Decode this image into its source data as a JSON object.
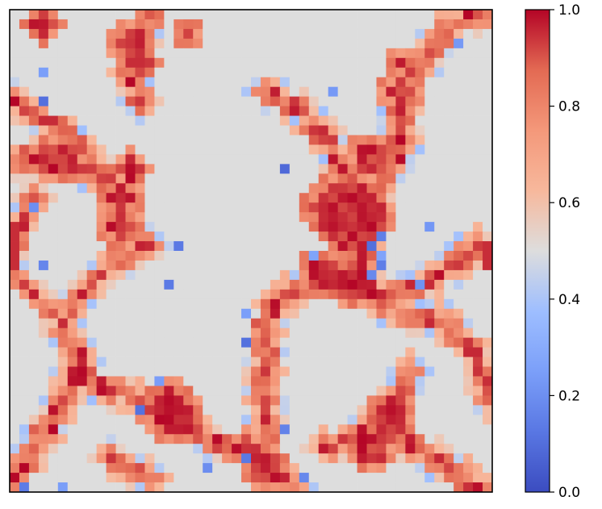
{
  "chart_data": {
    "type": "heatmap",
    "title": "",
    "xlabel": "",
    "ylabel": "",
    "grid": false,
    "axes_ticks_visible": false,
    "rows": 50,
    "cols": 50,
    "colormap": "coolwarm",
    "value_range": [
      0.0,
      1.0
    ],
    "colorbar": {
      "position": "right",
      "ticks": [
        0.0,
        0.2,
        0.4,
        0.6,
        0.8,
        1.0
      ],
      "tick_labels": [
        "0.0",
        "0.2",
        "0.4",
        "0.6",
        "0.8",
        "1.0"
      ]
    },
    "background_value": 0.5,
    "colors": {
      "low": "#3b4cc0",
      "mid": "#dddddd",
      "high": "#b40426"
    }
  }
}
